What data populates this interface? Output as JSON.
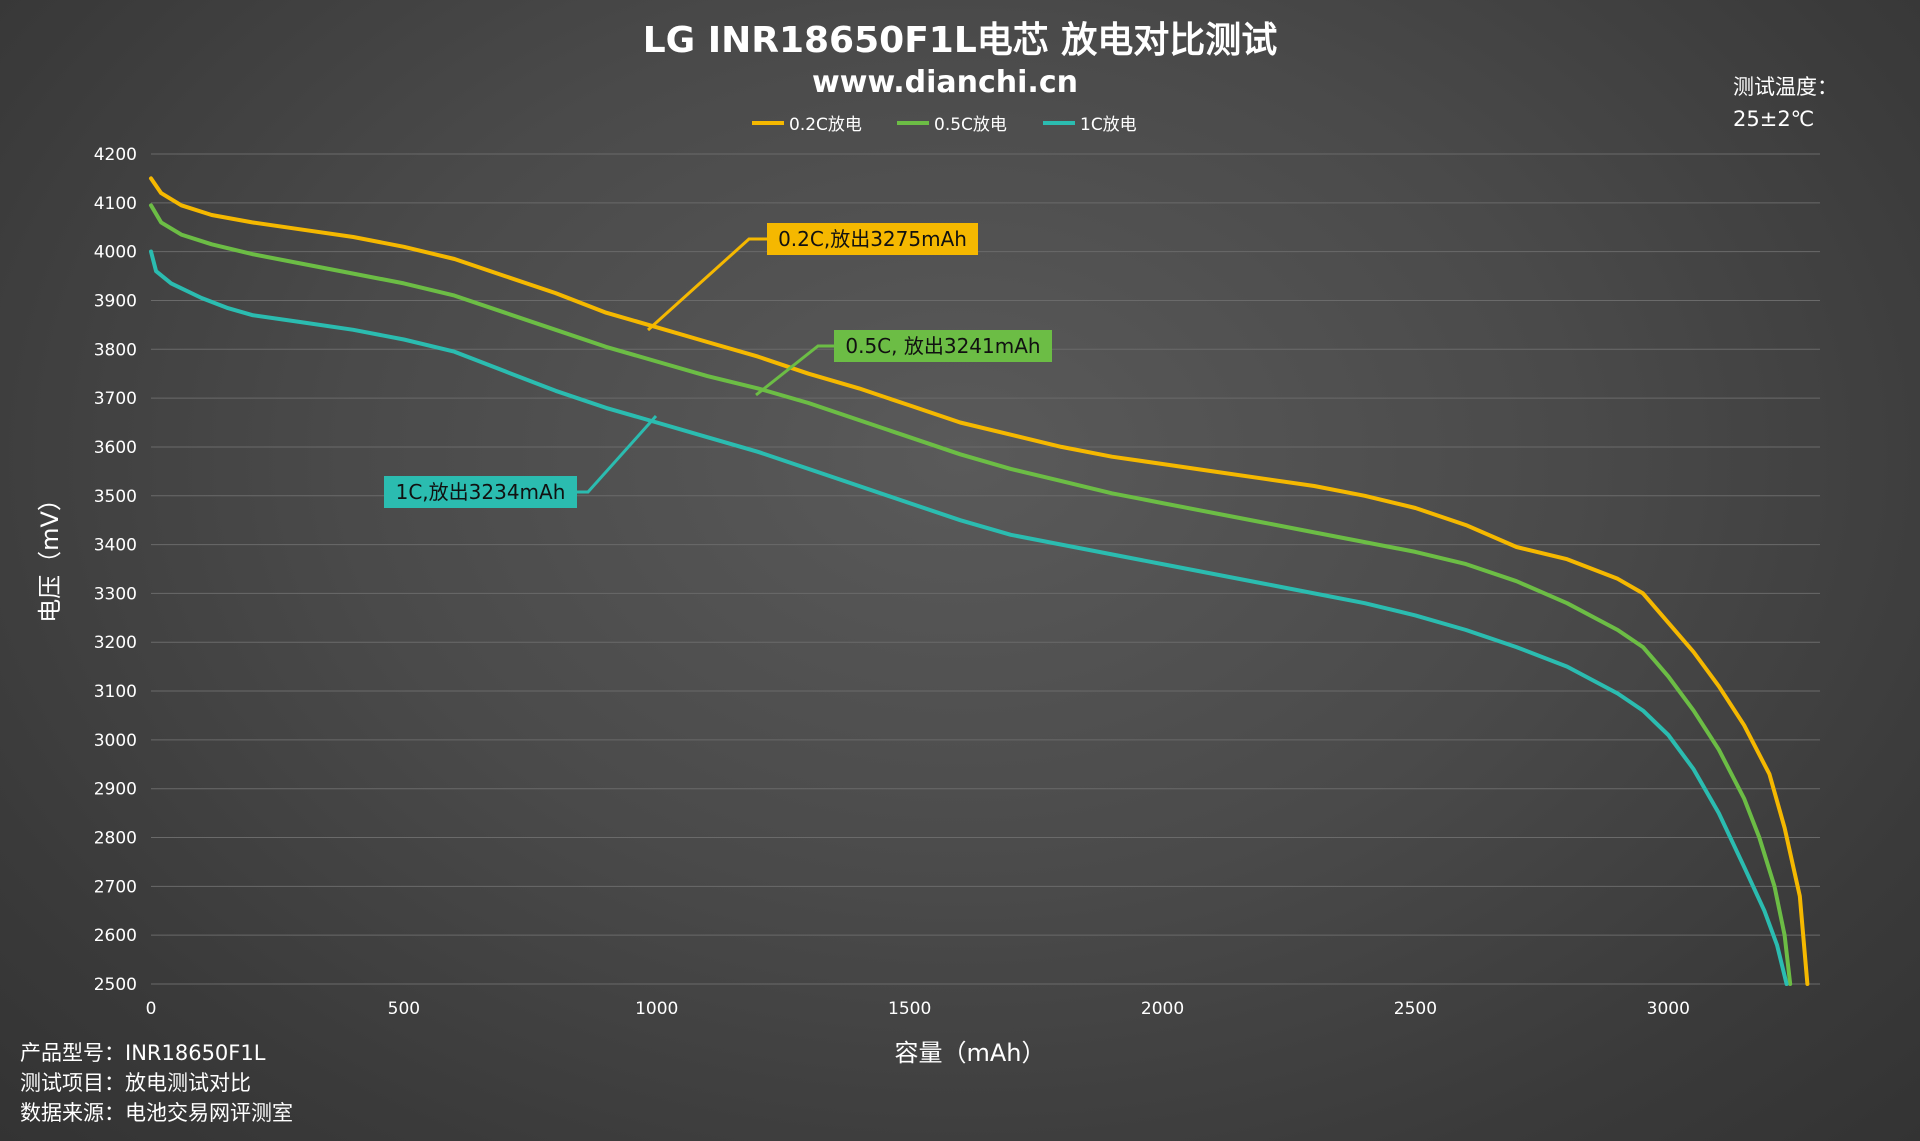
{
  "chart_data": {
    "type": "line",
    "title": "LG INR18650F1L电芯 放电对比测试",
    "subtitle": "www.dianchi.cn",
    "xlabel": "容量（mAh）",
    "ylabel": "电压（mV）",
    "xlim": [
      0,
      3300
    ],
    "ylim": [
      2500,
      4200
    ],
    "x_ticks": [
      "0",
      "500",
      "1000",
      "1500",
      "2000",
      "2500",
      "3000"
    ],
    "y_ticks": [
      "2500",
      "2600",
      "2700",
      "2800",
      "2900",
      "3000",
      "3100",
      "3200",
      "3300",
      "3400",
      "3500",
      "3600",
      "3700",
      "3800",
      "3900",
      "4000",
      "4100",
      "4200"
    ],
    "grid": "horizontal",
    "legend_position": "top",
    "series": [
      {
        "name": "0.2C放电",
        "color": "#f5b800",
        "annotation": "0.2C,放出3275mAh",
        "points": [
          [
            0,
            4150
          ],
          [
            20,
            4120
          ],
          [
            60,
            4095
          ],
          [
            120,
            4075
          ],
          [
            200,
            4060
          ],
          [
            300,
            4045
          ],
          [
            400,
            4030
          ],
          [
            500,
            4010
          ],
          [
            600,
            3985
          ],
          [
            700,
            3950
          ],
          [
            800,
            3915
          ],
          [
            900,
            3875
          ],
          [
            1000,
            3845
          ],
          [
            1100,
            3815
          ],
          [
            1200,
            3785
          ],
          [
            1300,
            3750
          ],
          [
            1400,
            3720
          ],
          [
            1500,
            3685
          ],
          [
            1600,
            3650
          ],
          [
            1700,
            3625
          ],
          [
            1800,
            3600
          ],
          [
            1900,
            3580
          ],
          [
            2000,
            3565
          ],
          [
            2100,
            3550
          ],
          [
            2200,
            3535
          ],
          [
            2300,
            3520
          ],
          [
            2400,
            3500
          ],
          [
            2500,
            3475
          ],
          [
            2600,
            3440
          ],
          [
            2700,
            3395
          ],
          [
            2800,
            3370
          ],
          [
            2900,
            3330
          ],
          [
            2950,
            3300
          ],
          [
            3000,
            3240
          ],
          [
            3050,
            3180
          ],
          [
            3100,
            3110
          ],
          [
            3150,
            3030
          ],
          [
            3200,
            2930
          ],
          [
            3230,
            2820
          ],
          [
            3260,
            2680
          ],
          [
            3275,
            2500
          ]
        ]
      },
      {
        "name": "0.5C放电",
        "color": "#6cbd45",
        "annotation": "0.5C, 放出3241mAh",
        "points": [
          [
            0,
            4095
          ],
          [
            20,
            4060
          ],
          [
            60,
            4035
          ],
          [
            120,
            4015
          ],
          [
            200,
            3995
          ],
          [
            300,
            3975
          ],
          [
            400,
            3955
          ],
          [
            500,
            3935
          ],
          [
            600,
            3910
          ],
          [
            700,
            3875
          ],
          [
            800,
            3840
          ],
          [
            900,
            3805
          ],
          [
            1000,
            3775
          ],
          [
            1100,
            3745
          ],
          [
            1200,
            3720
          ],
          [
            1300,
            3690
          ],
          [
            1400,
            3655
          ],
          [
            1500,
            3620
          ],
          [
            1600,
            3585
          ],
          [
            1700,
            3555
          ],
          [
            1800,
            3530
          ],
          [
            1900,
            3505
          ],
          [
            2000,
            3485
          ],
          [
            2100,
            3465
          ],
          [
            2200,
            3445
          ],
          [
            2300,
            3425
          ],
          [
            2400,
            3405
          ],
          [
            2500,
            3385
          ],
          [
            2600,
            3360
          ],
          [
            2700,
            3325
          ],
          [
            2800,
            3280
          ],
          [
            2900,
            3225
          ],
          [
            2950,
            3190
          ],
          [
            3000,
            3130
          ],
          [
            3050,
            3060
          ],
          [
            3100,
            2980
          ],
          [
            3150,
            2880
          ],
          [
            3180,
            2800
          ],
          [
            3210,
            2700
          ],
          [
            3230,
            2600
          ],
          [
            3241,
            2500
          ]
        ]
      },
      {
        "name": "1C放电",
        "color": "#2bbcb0",
        "annotation": "1C,放出3234mAh",
        "points": [
          [
            0,
            4000
          ],
          [
            10,
            3960
          ],
          [
            40,
            3935
          ],
          [
            100,
            3905
          ],
          [
            150,
            3885
          ],
          [
            200,
            3870
          ],
          [
            300,
            3855
          ],
          [
            400,
            3840
          ],
          [
            500,
            3820
          ],
          [
            600,
            3795
          ],
          [
            700,
            3755
          ],
          [
            800,
            3715
          ],
          [
            900,
            3680
          ],
          [
            1000,
            3650
          ],
          [
            1100,
            3620
          ],
          [
            1200,
            3590
          ],
          [
            1300,
            3555
          ],
          [
            1400,
            3520
          ],
          [
            1500,
            3485
          ],
          [
            1600,
            3450
          ],
          [
            1700,
            3420
          ],
          [
            1800,
            3400
          ],
          [
            1900,
            3380
          ],
          [
            2000,
            3360
          ],
          [
            2100,
            3340
          ],
          [
            2200,
            3320
          ],
          [
            2300,
            3300
          ],
          [
            2400,
            3280
          ],
          [
            2500,
            3255
          ],
          [
            2600,
            3225
          ],
          [
            2700,
            3190
          ],
          [
            2800,
            3150
          ],
          [
            2900,
            3095
          ],
          [
            2950,
            3060
          ],
          [
            3000,
            3010
          ],
          [
            3050,
            2940
          ],
          [
            3100,
            2850
          ],
          [
            3150,
            2740
          ],
          [
            3190,
            2650
          ],
          [
            3215,
            2580
          ],
          [
            3234,
            2500
          ]
        ]
      }
    ]
  },
  "temperature": {
    "label": "测试温度：",
    "value": "25±2℃"
  },
  "info": {
    "model": "产品型号：INR18650F1L",
    "item": "测试项目：放电测试对比",
    "source": "数据来源：电池交易网评测室"
  }
}
